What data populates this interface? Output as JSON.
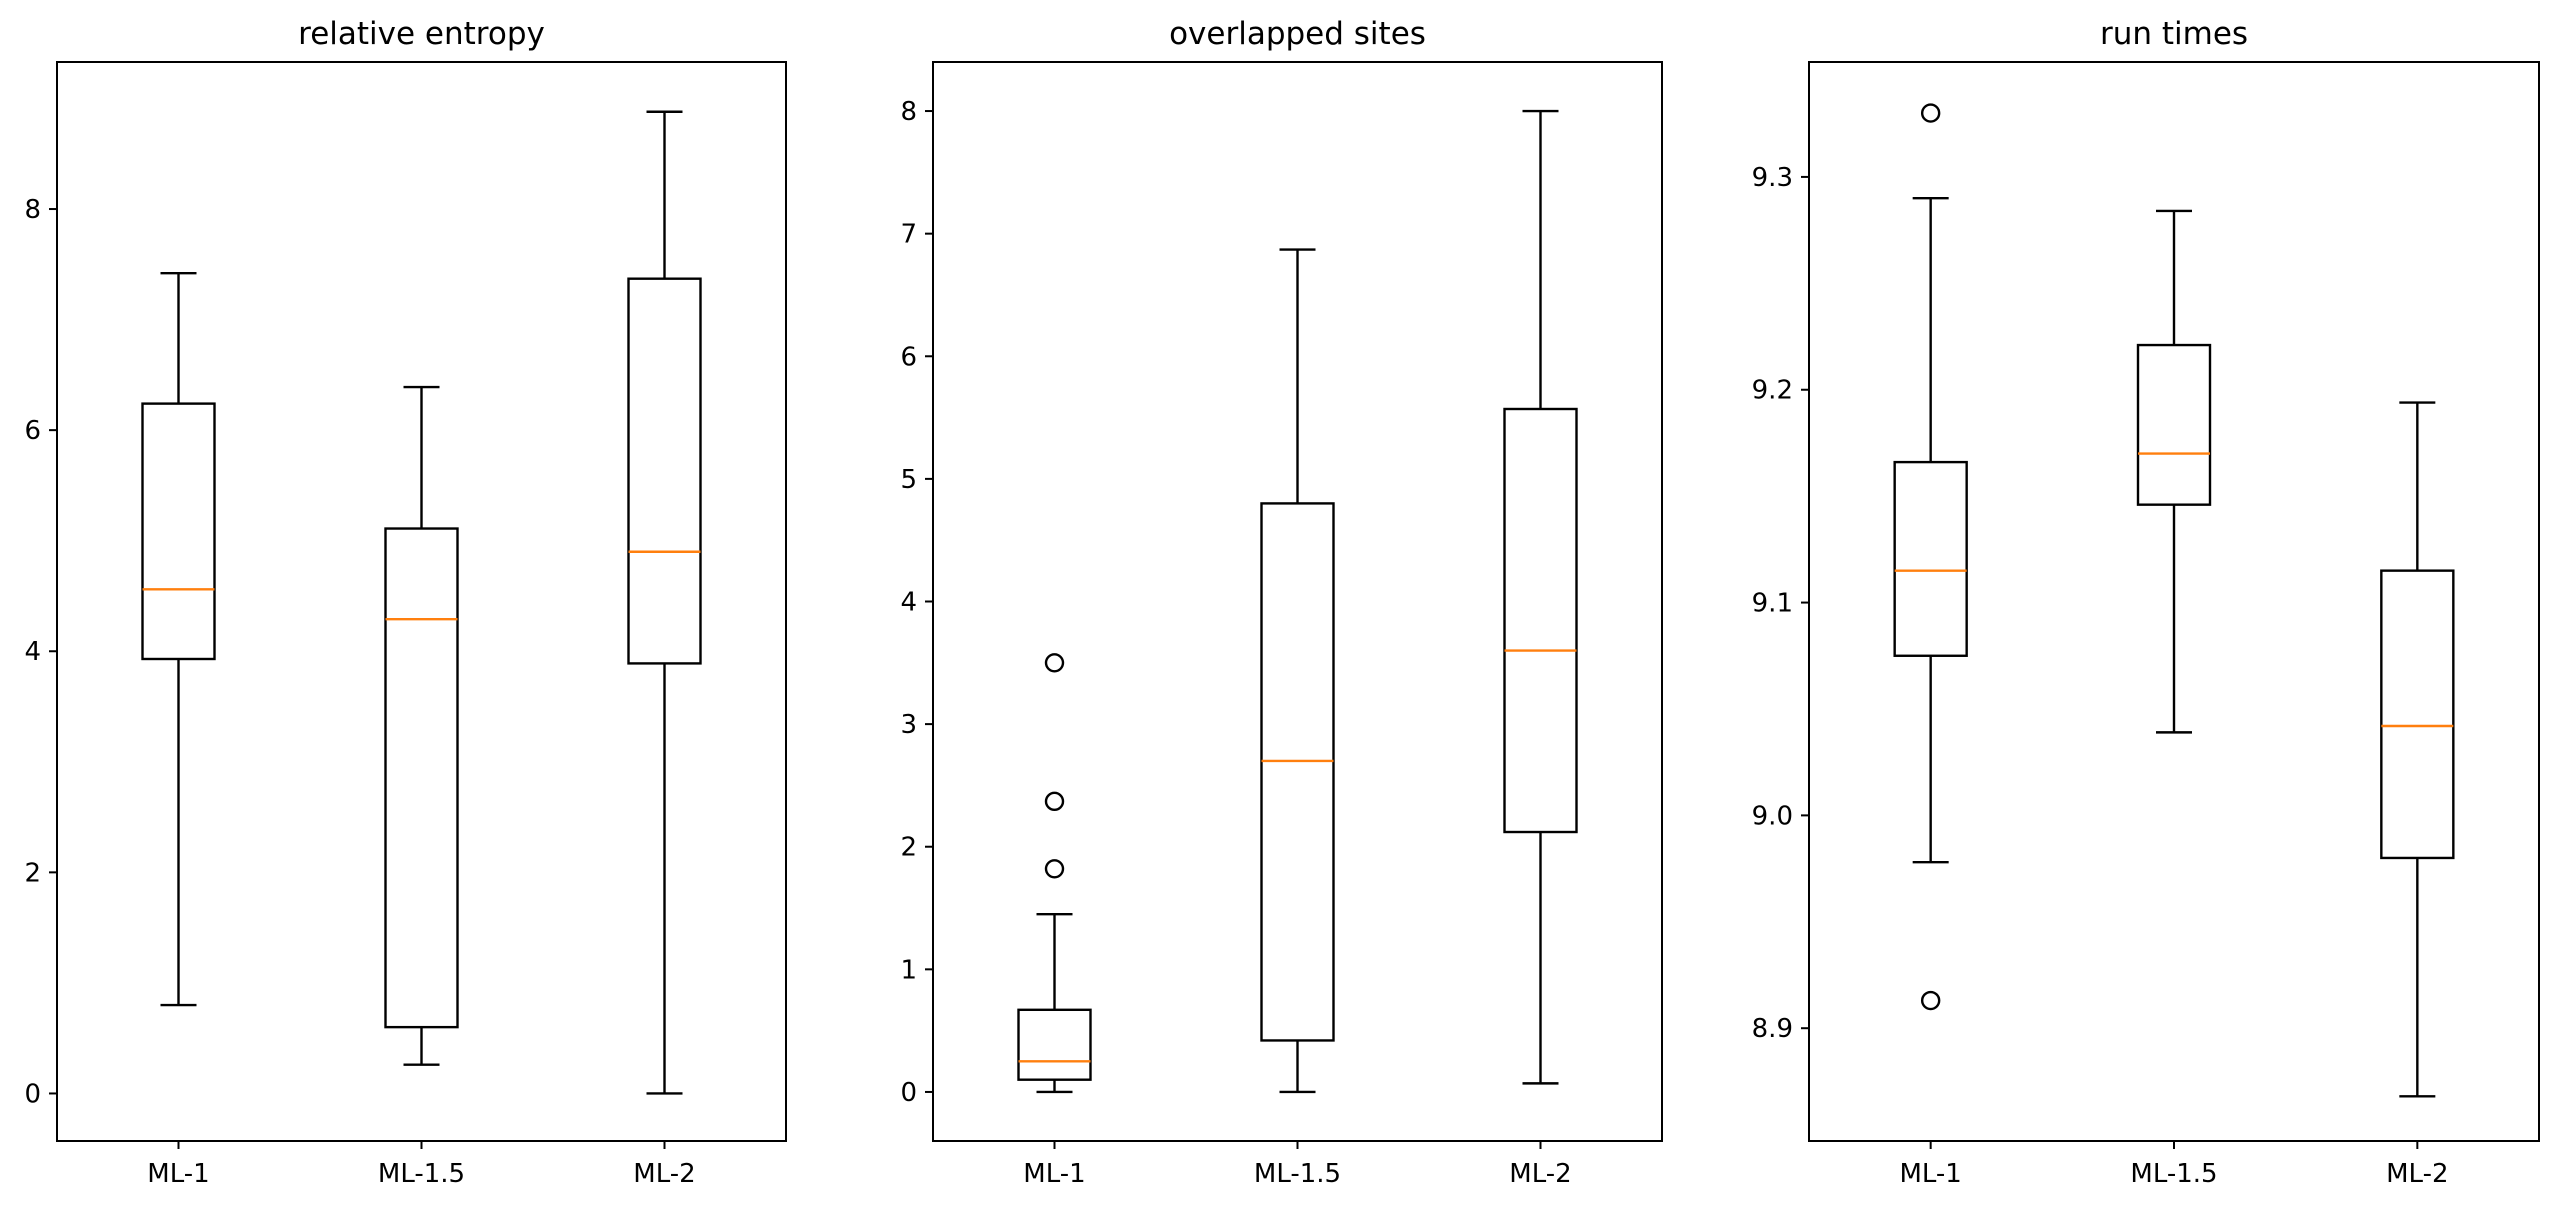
{
  "colors": {
    "box": "#000000",
    "median": "#ff7f0e",
    "flier": "#000000"
  },
  "chart_data": [
    {
      "type": "box",
      "title": "relative entropy",
      "xlabel": "",
      "ylabel": "",
      "categories": [
        "ML-1",
        "ML-1.5",
        "ML-2"
      ],
      "ylim": [
        -0.43,
        9.33
      ],
      "yticks": [
        0,
        2,
        4,
        6,
        8
      ],
      "ytick_labels": [
        "0",
        "2",
        "4",
        "6",
        "8"
      ],
      "grid": false,
      "boxes": [
        {
          "label": "ML-1",
          "whisker_low": 0.8,
          "q1": 3.93,
          "median": 4.56,
          "q3": 6.24,
          "whisker_high": 7.42,
          "fliers": []
        },
        {
          "label": "ML-1.5",
          "whisker_low": 0.26,
          "q1": 0.6,
          "median": 4.29,
          "q3": 5.11,
          "whisker_high": 6.39,
          "fliers": []
        },
        {
          "label": "ML-2",
          "whisker_low": 0.0,
          "q1": 3.89,
          "median": 4.9,
          "q3": 7.37,
          "whisker_high": 8.88,
          "fliers": []
        }
      ]
    },
    {
      "type": "box",
      "title": "overlapped sites",
      "xlabel": "",
      "ylabel": "",
      "categories": [
        "ML-1",
        "ML-1.5",
        "ML-2"
      ],
      "ylim": [
        -0.4,
        8.4
      ],
      "yticks": [
        0,
        1,
        2,
        3,
        4,
        5,
        6,
        7,
        8
      ],
      "ytick_labels": [
        "0",
        "1",
        "2",
        "3",
        "4",
        "5",
        "6",
        "7",
        "8"
      ],
      "grid": false,
      "boxes": [
        {
          "label": "ML-1",
          "whisker_low": 0.0,
          "q1": 0.1,
          "median": 0.25,
          "q3": 0.67,
          "whisker_high": 1.45,
          "fliers": [
            1.82,
            2.37,
            3.5
          ]
        },
        {
          "label": "ML-1.5",
          "whisker_low": 0.0,
          "q1": 0.42,
          "median": 2.7,
          "q3": 4.8,
          "whisker_high": 6.87,
          "fliers": []
        },
        {
          "label": "ML-2",
          "whisker_low": 0.07,
          "q1": 2.12,
          "median": 3.6,
          "q3": 5.57,
          "whisker_high": 8.0,
          "fliers": []
        }
      ]
    },
    {
      "type": "box",
      "title": "run times",
      "xlabel": "",
      "ylabel": "",
      "categories": [
        "ML-1",
        "ML-1.5",
        "ML-2"
      ],
      "ylim": [
        8.847,
        9.354
      ],
      "yticks": [
        8.9,
        9.0,
        9.1,
        9.2,
        9.3
      ],
      "ytick_labels": [
        "8.9",
        "9.0",
        "9.1",
        "9.2",
        "9.3"
      ],
      "grid": false,
      "boxes": [
        {
          "label": "ML-1",
          "whisker_low": 8.978,
          "q1": 9.075,
          "median": 9.115,
          "q3": 9.166,
          "whisker_high": 9.29,
          "fliers": [
            8.913,
            9.33
          ]
        },
        {
          "label": "ML-1.5",
          "whisker_low": 9.039,
          "q1": 9.146,
          "median": 9.17,
          "q3": 9.221,
          "whisker_high": 9.284,
          "fliers": []
        },
        {
          "label": "ML-2",
          "whisker_low": 8.868,
          "q1": 8.98,
          "median": 9.042,
          "q3": 9.115,
          "whisker_high": 9.194,
          "fliers": []
        }
      ]
    }
  ]
}
